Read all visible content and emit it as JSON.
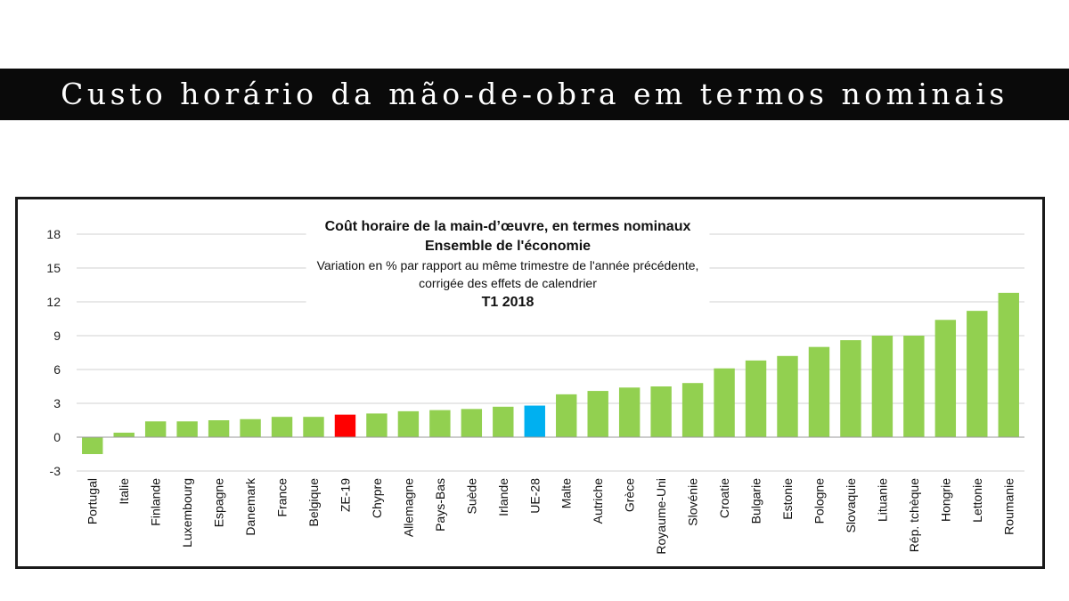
{
  "banner": {
    "title": "Custo horário da mão-de-obra em termos nominais"
  },
  "chart_data": {
    "type": "bar",
    "title": "Coût horaire de la main-d’œuvre, en termes nominaux",
    "subtitle_lines": [
      "Ensemble de l'économie",
      "Variation en % par rapport au même trimestre de l'année précédente,",
      "corrigée des effets de calendrier",
      "T1 2018"
    ],
    "xlabel": "",
    "ylabel": "",
    "ylim": [
      -3,
      18
    ],
    "yticks": [
      "18",
      "15",
      "12",
      "9",
      "6",
      "3",
      "0",
      "-3"
    ],
    "grid": true,
    "categories": [
      "Portugal",
      "Italie",
      "Finlande",
      "Luxembourg",
      "Espagne",
      "Danemark",
      "France",
      "Belgique",
      "ZE-19",
      "Chypre",
      "Allemagne",
      "Pays-Bas",
      "Suède",
      "Irlande",
      "UE-28",
      "Malte",
      "Autriche",
      "Grèce",
      "Royaume-Uni",
      "Slovénie",
      "Croatie",
      "Bulgarie",
      "Estonie",
      "Pologne",
      "Slovaquie",
      "Lituanie",
      "Rép. tchèque",
      "Hongrie",
      "Lettonie",
      "Roumanie"
    ],
    "values": [
      -1.5,
      0.4,
      1.4,
      1.4,
      1.5,
      1.6,
      1.8,
      1.8,
      2.0,
      2.1,
      2.3,
      2.4,
      2.5,
      2.7,
      2.8,
      3.8,
      4.1,
      4.4,
      4.5,
      4.8,
      6.1,
      6.8,
      7.2,
      8.0,
      8.6,
      9.0,
      9.0,
      10.4,
      11.2,
      12.8
    ],
    "colors": {
      "default": "#92d050",
      "highlight": {
        "ZE-19": "#ff0000",
        "UE-28": "#00b0f0"
      }
    }
  }
}
